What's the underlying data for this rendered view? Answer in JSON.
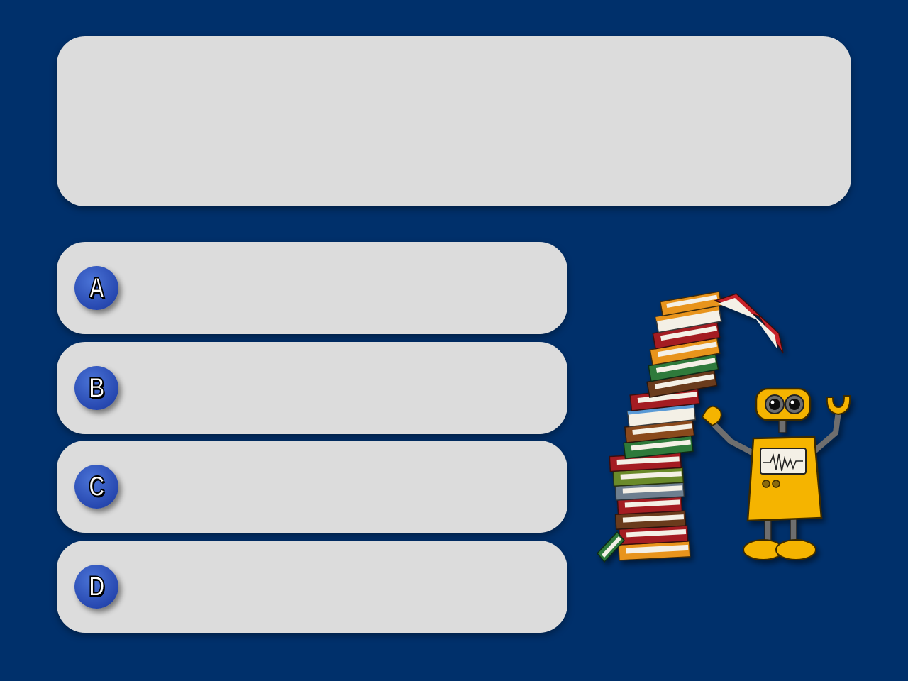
{
  "question": {
    "text": ""
  },
  "answers": [
    {
      "letter": "A",
      "text": ""
    },
    {
      "letter": "B",
      "text": ""
    },
    {
      "letter": "C",
      "text": ""
    },
    {
      "letter": "D",
      "text": ""
    }
  ],
  "colors": {
    "background": "#00306b",
    "panel": "#dcdcdc",
    "badge": "#2748b0",
    "robot": "#f5b400"
  },
  "illustration": {
    "icon": "robot-book-stack-icon"
  }
}
